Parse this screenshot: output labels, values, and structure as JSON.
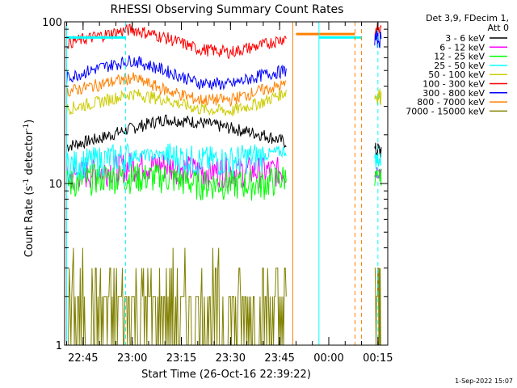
{
  "chart_data": {
    "type": "line",
    "title": "RHESSI Observing Summary Count Rates",
    "xlabel": "Start Time (26-Oct-16 22:39:22)",
    "ylabel": "Count Rate (s⁻¹ detector⁻¹)",
    "ylabel_base": "Count Rate (s",
    "ylabel_sup1": "-1",
    "ylabel_mid": " detector",
    "ylabel_sup2": "-1",
    "ylabel_end": ")",
    "yscale": "log",
    "ylim": [
      1,
      100
    ],
    "y_ticks": [
      {
        "value": 1,
        "label": "1"
      },
      {
        "value": 10,
        "label": "10"
      },
      {
        "value": 100,
        "label": "100"
      }
    ],
    "xlim": [
      "22:39:22",
      "00:18:00"
    ],
    "x_ticks": [
      "22:45",
      "23:00",
      "23:15",
      "23:30",
      "23:45",
      "00:00",
      "00:15"
    ],
    "legend_header": [
      "Det 3,9, FDecim 1,",
      "Att 0"
    ],
    "legend_position": "top-right",
    "footer_date": "1-Sep-2022 15:07",
    "series": [
      {
        "name": "3 - 6 keV",
        "color": "#000000",
        "x": [
          "22:40",
          "22:50",
          "23:00",
          "23:10",
          "23:20",
          "23:30",
          "23:40",
          "23:47"
        ],
        "values": [
          17,
          19,
          22,
          25,
          24,
          22,
          20,
          18
        ],
        "post_x": [
          "00:14",
          "00:16"
        ],
        "post_values": [
          16,
          16
        ]
      },
      {
        "name": "6 - 12 keV",
        "color": "#ff00ff",
        "x": [
          "22:40",
          "22:50",
          "23:00",
          "23:10",
          "23:20",
          "23:30",
          "23:40",
          "23:47"
        ],
        "values": [
          11,
          12,
          13,
          13,
          12,
          12,
          12,
          12
        ],
        "post_x": [
          "00:14",
          "00:16"
        ],
        "post_values": [
          12,
          12
        ]
      },
      {
        "name": "12 - 25 keV",
        "color": "#00ff00",
        "x": [
          "22:40",
          "22:50",
          "23:00",
          "23:10",
          "23:20",
          "23:30",
          "23:40",
          "23:47"
        ],
        "values": [
          10,
          11,
          11,
          11,
          10,
          10,
          10,
          11
        ],
        "post_x": [
          "00:14",
          "00:16"
        ],
        "post_values": [
          11,
          11
        ]
      },
      {
        "name": "25 - 50 keV",
        "color": "#00ffff",
        "x": [
          "22:40",
          "22:50",
          "23:00",
          "23:10",
          "23:20",
          "23:30",
          "23:40",
          "23:47"
        ],
        "values": [
          13,
          14,
          15,
          15,
          14,
          14,
          15,
          16
        ],
        "post_x": [
          "00:14",
          "00:16"
        ],
        "post_values": [
          14,
          14
        ]
      },
      {
        "name": "50 - 100 keV",
        "color": "#cccc00",
        "x": [
          "22:40",
          "22:50",
          "23:00",
          "23:10",
          "23:20",
          "23:30",
          "23:40",
          "23:47"
        ],
        "values": [
          29,
          32,
          36,
          33,
          29,
          28,
          32,
          37
        ],
        "post_x": [
          "00:14",
          "00:16"
        ],
        "post_values": [
          35,
          35
        ]
      },
      {
        "name": "100 - 300 keV",
        "color": "#ff0000",
        "x": [
          "22:40",
          "22:50",
          "23:00",
          "23:10",
          "23:20",
          "23:30",
          "23:40",
          "23:47"
        ],
        "values": [
          74,
          82,
          90,
          80,
          68,
          65,
          72,
          80
        ],
        "post_x": [
          "00:14",
          "00:16"
        ],
        "post_values": [
          88,
          88
        ]
      },
      {
        "name": "300 - 800 keV",
        "color": "#0000ff",
        "x": [
          "22:40",
          "22:50",
          "23:00",
          "23:10",
          "23:20",
          "23:30",
          "23:40",
          "23:47"
        ],
        "values": [
          45,
          52,
          58,
          50,
          42,
          41,
          47,
          50
        ],
        "post_x": [
          "00:14",
          "00:16"
        ],
        "post_values": [
          78,
          78
        ]
      },
      {
        "name": "800 - 7000 keV",
        "color": "#ff8000",
        "x": [
          "22:40",
          "22:50",
          "23:00",
          "23:10",
          "23:20",
          "23:30",
          "23:40",
          "23:47"
        ],
        "values": [
          37,
          41,
          45,
          38,
          33,
          33,
          38,
          41
        ],
        "post_x": [
          "23:50",
          "00:08"
        ],
        "post_values": [
          84,
          84
        ]
      },
      {
        "name": "7000 - 15000 keV",
        "color": "#808000",
        "x": [
          "22:40",
          "22:50",
          "23:00",
          "23:10",
          "23:20",
          "23:30",
          "23:40",
          "23:47"
        ],
        "values": [
          2,
          2,
          2,
          2,
          2,
          2,
          2,
          2
        ],
        "post_x": [
          "00:14",
          "00:16"
        ],
        "post_values": [
          2,
          2
        ]
      }
    ],
    "vertical_markers": [
      {
        "time": "22:40",
        "color": "#00ffff",
        "style": "solid"
      },
      {
        "time": "22:58",
        "color": "#00ffff",
        "style": "dashed"
      },
      {
        "time": "23:49",
        "color": "#ff8000",
        "style": "solid"
      },
      {
        "time": "23:57",
        "color": "#00ffff",
        "style": "solid"
      },
      {
        "time": "00:08",
        "color": "#ff8000",
        "style": "dashed"
      },
      {
        "time": "00:10",
        "color": "#ff8000",
        "style": "dashed"
      },
      {
        "time": "00:15",
        "color": "#00ffff",
        "style": "dashed"
      }
    ],
    "grid": false
  }
}
